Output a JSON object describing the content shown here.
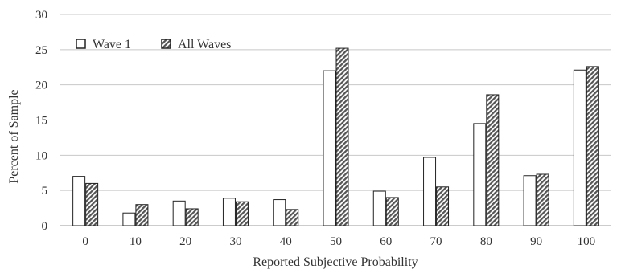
{
  "chart_data": {
    "type": "bar",
    "categories": [
      "0",
      "10",
      "20",
      "30",
      "40",
      "50",
      "60",
      "70",
      "80",
      "90",
      "100"
    ],
    "series": [
      {
        "name": "Wave 1",
        "values": [
          7.0,
          1.8,
          3.5,
          3.9,
          3.7,
          22.0,
          4.9,
          9.7,
          14.5,
          7.1,
          22.1
        ]
      },
      {
        "name": "All Waves",
        "values": [
          6.0,
          3.0,
          2.4,
          3.4,
          2.3,
          25.2,
          4.0,
          5.5,
          18.6,
          7.3,
          22.6
        ]
      }
    ],
    "xlabel": "Reported Subjective Probability",
    "ylabel": "Percent of Sample",
    "ylim": [
      0,
      30
    ],
    "yticks": [
      0,
      5,
      10,
      15,
      20,
      25,
      30
    ],
    "grid": true,
    "legend": "top-left",
    "colors": {
      "grid": "#c8c8c8",
      "bar_stroke": "#222222",
      "wave1_fill": "#ffffff",
      "allwaves_fill": "#888888"
    }
  }
}
